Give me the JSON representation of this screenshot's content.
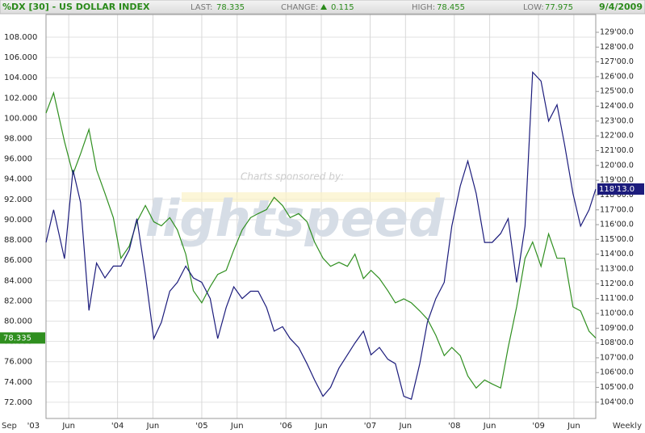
{
  "chart_data": {
    "type": "line",
    "title": "%DX [30] - US DOLLAR INDEX",
    "last_label": "LAST:",
    "last": "78.335",
    "change_label": "CHANGE:",
    "change": "0.115",
    "high_label": "HIGH:",
    "high": "78.455",
    "low_label": "LOW:",
    "low": "77.975",
    "date": "9/4/2009",
    "watermark_caption": "Charts sponsored by:",
    "watermark": "lightspeed",
    "x_start_label": "Sep",
    "period": "Weekly",
    "grid": true,
    "x": [
      2003.15,
      2003.24,
      2003.37,
      2003.47,
      2003.56,
      2003.66,
      2003.75,
      2003.85,
      2003.95,
      2004.04,
      2004.14,
      2004.23,
      2004.33,
      2004.43,
      2004.52,
      2004.62,
      2004.71,
      2004.81,
      2004.9,
      2005.0,
      2005.1,
      2005.19,
      2005.29,
      2005.38,
      2005.48,
      2005.58,
      2005.67,
      2005.77,
      2005.86,
      2005.96,
      2006.05,
      2006.15,
      2006.25,
      2006.34,
      2006.44,
      2006.53,
      2006.63,
      2006.73,
      2006.82,
      2006.92,
      2007.01,
      2007.11,
      2007.21,
      2007.3,
      2007.4,
      2007.49,
      2007.59,
      2007.68,
      2007.78,
      2007.88,
      2007.97,
      2008.07,
      2008.16,
      2008.26,
      2008.36,
      2008.45,
      2008.55,
      2008.64,
      2008.74,
      2008.84,
      2008.93,
      2009.03,
      2009.12,
      2009.22,
      2009.31,
      2009.41,
      2009.5,
      2009.6,
      2009.68
    ],
    "xlim": [
      2003.15,
      2009.68
    ],
    "xticks": [
      {
        "value": 2003,
        "label": "'03"
      },
      {
        "value": 2003.42,
        "label": "Jun"
      },
      {
        "value": 2004,
        "label": "'04"
      },
      {
        "value": 2004.42,
        "label": "Jun"
      },
      {
        "value": 2005,
        "label": "'05"
      },
      {
        "value": 2005.42,
        "label": "Jun"
      },
      {
        "value": 2006,
        "label": "'06"
      },
      {
        "value": 2006.42,
        "label": "Jun"
      },
      {
        "value": 2007,
        "label": "'07"
      },
      {
        "value": 2007.42,
        "label": "Jun"
      },
      {
        "value": 2008,
        "label": "'08"
      },
      {
        "value": 2008.42,
        "label": "Jun"
      },
      {
        "value": 2009,
        "label": "'09"
      },
      {
        "value": 2009.42,
        "label": "Jun"
      }
    ],
    "ylim": [
      70.4,
      110.23
    ],
    "yticks": [
      {
        "value": 72,
        "label": "72.000"
      },
      {
        "value": 74,
        "label": "74.000"
      },
      {
        "value": 76,
        "label": "76.000"
      },
      {
        "value": 78,
        "label": "78.000"
      },
      {
        "value": 80,
        "label": "80.000"
      },
      {
        "value": 82,
        "label": "82.000"
      },
      {
        "value": 84,
        "label": "84.000"
      },
      {
        "value": 86,
        "label": "86.000"
      },
      {
        "value": 88,
        "label": "88.000"
      },
      {
        "value": 90,
        "label": "90.000"
      },
      {
        "value": 92,
        "label": "92.000"
      },
      {
        "value": 94,
        "label": "94.000"
      },
      {
        "value": 96,
        "label": "96.000"
      },
      {
        "value": 98,
        "label": "98.000"
      },
      {
        "value": 100,
        "label": "100.000"
      },
      {
        "value": 102,
        "label": "102.000"
      },
      {
        "value": 104,
        "label": "104.000"
      },
      {
        "value": 106,
        "label": "106.000"
      },
      {
        "value": 108,
        "label": "108.000"
      }
    ],
    "y2lim": [
      102.9,
      130.2
    ],
    "y2ticks": [
      {
        "value": 104,
        "label": "104'00.0"
      },
      {
        "value": 105,
        "label": "105'00.0"
      },
      {
        "value": 106,
        "label": "106'00.0"
      },
      {
        "value": 107,
        "label": "107'00.0"
      },
      {
        "value": 108,
        "label": "108'00.0"
      },
      {
        "value": 109,
        "label": "109'00.0"
      },
      {
        "value": 110,
        "label": "110'00.0"
      },
      {
        "value": 111,
        "label": "111'00.0"
      },
      {
        "value": 112,
        "label": "112'00.0"
      },
      {
        "value": 113,
        "label": "113'00.0"
      },
      {
        "value": 114,
        "label": "114'00.0"
      },
      {
        "value": 115,
        "label": "115'00.0"
      },
      {
        "value": 116,
        "label": "116'00.0"
      },
      {
        "value": 117,
        "label": "117'00.0"
      },
      {
        "value": 118,
        "label": "118'00.0"
      },
      {
        "value": 119,
        "label": "119'00.0"
      },
      {
        "value": 120,
        "label": "120'00.0"
      },
      {
        "value": 121,
        "label": "121'00.0"
      },
      {
        "value": 122,
        "label": "122'00.0"
      },
      {
        "value": 123,
        "label": "123'00.0"
      },
      {
        "value": 124,
        "label": "124'00.0"
      },
      {
        "value": 125,
        "label": "125'00.0"
      },
      {
        "value": 126,
        "label": "126'00.0"
      },
      {
        "value": 127,
        "label": "127'00.0"
      },
      {
        "value": 128,
        "label": "128'00.0"
      },
      {
        "value": 129,
        "label": "129'00.0"
      }
    ],
    "series": [
      {
        "color": "#2f8f1f",
        "axis": "y",
        "current_label": "78.335",
        "values": [
          100.5,
          102.5,
          97.7,
          94.5,
          96.5,
          98.9,
          94.9,
          92.6,
          90.2,
          86.2,
          87.4,
          89.8,
          91.4,
          89.8,
          89.4,
          90.2,
          89.0,
          86.6,
          83.0,
          81.8,
          83.4,
          84.6,
          85.0,
          87.0,
          89.0,
          90.2,
          90.6,
          91.0,
          92.2,
          91.4,
          90.2,
          90.6,
          89.8,
          87.8,
          86.2,
          85.4,
          85.8,
          85.4,
          86.6,
          84.2,
          85.0,
          84.2,
          83.0,
          81.8,
          82.2,
          81.8,
          81.0,
          80.2,
          78.6,
          76.6,
          77.4,
          76.6,
          74.6,
          73.4,
          74.2,
          73.8,
          73.4,
          77.4,
          81.4,
          86.2,
          87.8,
          85.4,
          88.6,
          86.2,
          86.2,
          81.4,
          81.0,
          79.0,
          78.335
        ]
      },
      {
        "color": "#1c1c7c",
        "axis": "y2",
        "current_label": "118'13.0",
        "values": [
          114.8,
          117.0,
          113.7,
          119.7,
          117.5,
          110.2,
          113.4,
          112.4,
          113.2,
          113.2,
          114.3,
          116.4,
          112.6,
          108.3,
          109.4,
          111.5,
          112.1,
          113.2,
          112.4,
          112.1,
          111.0,
          108.3,
          110.4,
          111.8,
          111.0,
          111.5,
          111.5,
          110.4,
          108.8,
          109.1,
          108.3,
          107.7,
          106.6,
          105.5,
          104.4,
          105.0,
          106.3,
          107.2,
          108.0,
          108.8,
          107.2,
          107.7,
          106.9,
          106.6,
          104.4,
          104.2,
          106.6,
          109.4,
          111.0,
          112.1,
          115.9,
          118.6,
          120.3,
          118.1,
          114.8,
          114.8,
          115.4,
          116.4,
          112.1,
          115.9,
          126.3,
          125.7,
          123.0,
          124.1,
          121.4,
          118.1,
          115.9,
          117.0,
          118.40625
        ]
      }
    ]
  }
}
